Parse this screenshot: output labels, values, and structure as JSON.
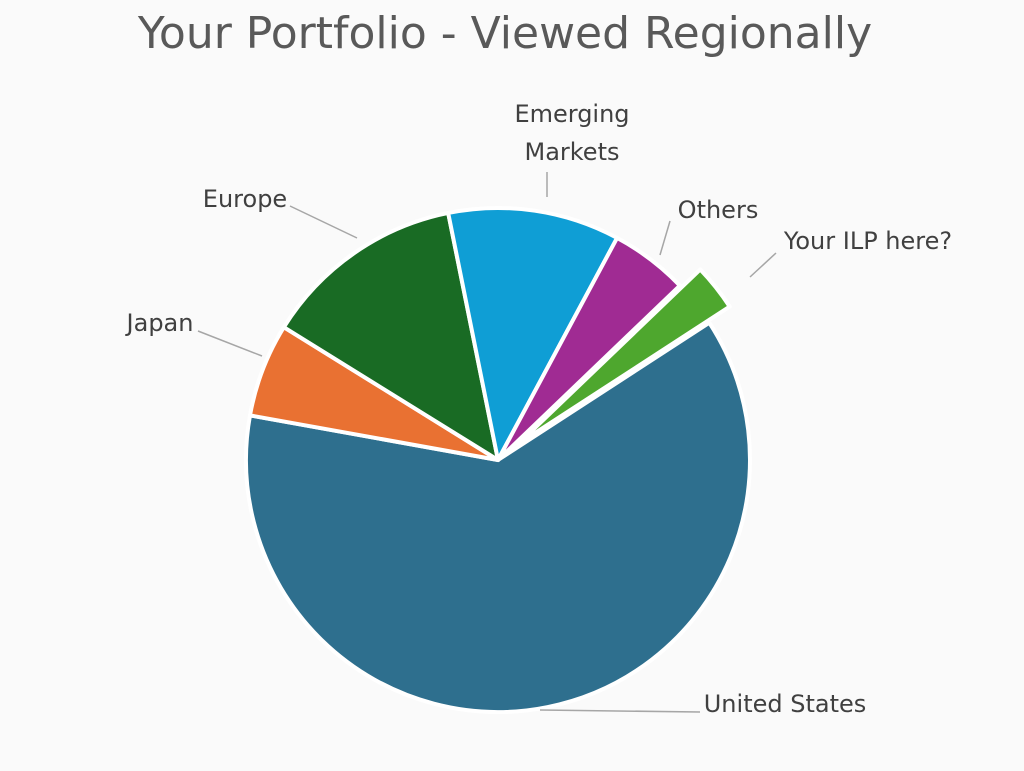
{
  "chart_data": {
    "type": "pie",
    "title": "Your Portfolio - Viewed Regionally",
    "categories": [
      "United States",
      "Japan",
      "Europe",
      "Emerging Markets",
      "Others",
      "Your ILP here?"
    ],
    "values": [
      62,
      6,
      13,
      11,
      5,
      3
    ],
    "colors": [
      "#2e6f8e",
      "#e97132",
      "#196b24",
      "#0f9ed5",
      "#a02b93",
      "#4ea72e"
    ],
    "exploded": [
      false,
      false,
      false,
      false,
      false,
      true
    ]
  }
}
